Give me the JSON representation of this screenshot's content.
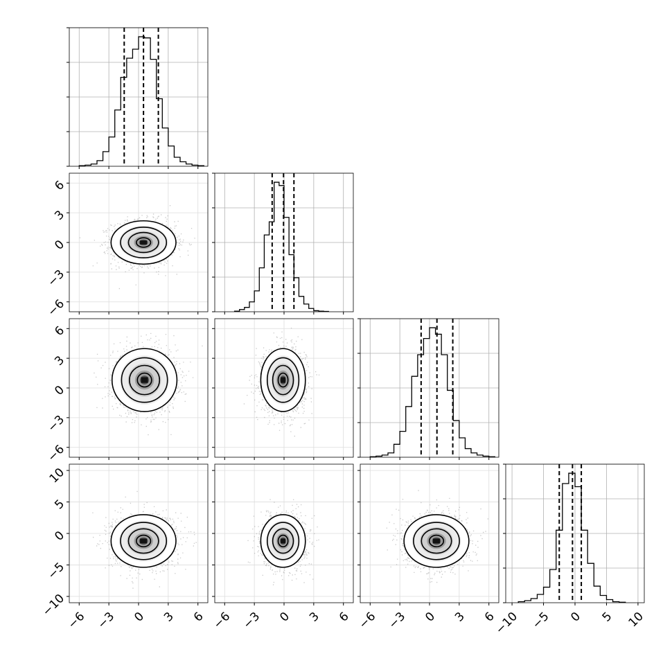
{
  "chart_data": {
    "type": "corner",
    "title": "",
    "parameters": [
      {
        "xlim": [
          -7.0,
          7.0
        ],
        "ticks": [
          -6,
          -3,
          0,
          3,
          6
        ],
        "tick_labels": [
          "−6",
          "−3",
          "0",
          "3",
          "6"
        ],
        "quantiles": [
          -1.45,
          0.5,
          2.0
        ],
        "hist_edges": [
          -6,
          -5.4,
          -4.8,
          -4.2,
          -3.6,
          -3.0,
          -2.4,
          -1.8,
          -1.2,
          -0.6,
          0.0,
          0.6,
          1.2,
          1.8,
          2.4,
          3.0,
          3.6,
          4.2,
          4.8,
          5.4,
          6.0,
          6.6
        ],
        "hist_values": [
          0.5,
          1,
          2,
          5,
          13,
          26,
          50,
          79,
          96,
          104,
          115,
          114,
          95,
          60,
          34,
          18,
          8,
          4,
          2,
          1,
          0.5
        ]
      },
      {
        "xlim": [
          -7.0,
          7.0
        ],
        "ticks": [
          -6,
          -3,
          0,
          3,
          6
        ],
        "tick_labels": [
          "−6",
          "−3",
          "0",
          "3",
          "6"
        ],
        "quantiles": [
          -1.2,
          -0.05,
          1.0
        ],
        "hist_edges": [
          -5.0,
          -4.5,
          -4.0,
          -3.5,
          -3.0,
          -2.5,
          -2.0,
          -1.5,
          -1.0,
          -0.5,
          0.0,
          0.5,
          1.0,
          1.5,
          2.0,
          2.5,
          3.0,
          3.5,
          4.0,
          4.5
        ],
        "hist_values": [
          0.5,
          2,
          4,
          9,
          19,
          40,
          70,
          82,
          118,
          115,
          86,
          52,
          31,
          14,
          7,
          3,
          1,
          0.5,
          0.3
        ]
      },
      {
        "xlim": [
          -7.0,
          7.0
        ],
        "ticks": [
          -6,
          -3,
          0,
          3,
          6
        ],
        "tick_labels": [
          "−6",
          "−3",
          "0",
          "3",
          "6"
        ],
        "quantiles": [
          -0.85,
          0.75,
          2.35
        ],
        "hist_edges": [
          -6,
          -5.4,
          -4.8,
          -4.2,
          -3.6,
          -3.0,
          -2.4,
          -1.8,
          -1.2,
          -0.6,
          0.0,
          0.6,
          1.2,
          1.8,
          2.4,
          3.0,
          3.6,
          4.2,
          4.8,
          5.4,
          6.0,
          6.6
        ],
        "hist_values": [
          0.5,
          1,
          2,
          4,
          12,
          24,
          47,
          75,
          95,
          110,
          120,
          114,
          95,
          62,
          34,
          18,
          8,
          4,
          2,
          1,
          0.5
        ]
      },
      {
        "xlim": [
          -11.0,
          11.0
        ],
        "ticks": [
          -10,
          -5,
          0,
          5,
          10
        ],
        "tick_labels": [
          "−10",
          "−5",
          "0",
          "5",
          "10"
        ],
        "quantiles": [
          -2.5,
          -0.4,
          1.0
        ],
        "hist_edges": [
          -9,
          -8,
          -7,
          -6,
          -5,
          -4,
          -3,
          -2,
          -1,
          0,
          1,
          2,
          3,
          4,
          5,
          6,
          7,
          8
        ],
        "hist_values": [
          1,
          2,
          4,
          8,
          15,
          32,
          70,
          115,
          125,
          112,
          70,
          38,
          16,
          7,
          3,
          1,
          0.5
        ]
      }
    ],
    "y_axes": [
      null,
      {
        "ticks": [
          -6,
          -3,
          0,
          3,
          6
        ],
        "tick_labels": [
          "−6",
          "−3",
          "0",
          "3",
          "6"
        ]
      },
      {
        "ticks": [
          -6,
          -3,
          0,
          3,
          6
        ],
        "tick_labels": [
          "−6",
          "−3",
          "0",
          "3",
          "6"
        ]
      },
      {
        "ticks": [
          -10,
          -5,
          0,
          5,
          10
        ],
        "tick_labels": [
          "−10",
          "−5",
          "0",
          "5",
          "10"
        ]
      }
    ],
    "pair_centers": {
      "1-0": [
        0.5,
        0.0
      ],
      "2-0": [
        0.6,
        0.8
      ],
      "2-1": [
        -0.1,
        0.8
      ],
      "3-0": [
        0.5,
        -1.2
      ],
      "3-1": [
        -0.1,
        -1.2
      ],
      "3-2": [
        0.7,
        -1.2
      ]
    },
    "pair_spread": {
      "0": 1.6,
      "1": 1.1,
      "2": 1.6,
      "3": 2.1
    },
    "grid": true,
    "legend": "none"
  }
}
